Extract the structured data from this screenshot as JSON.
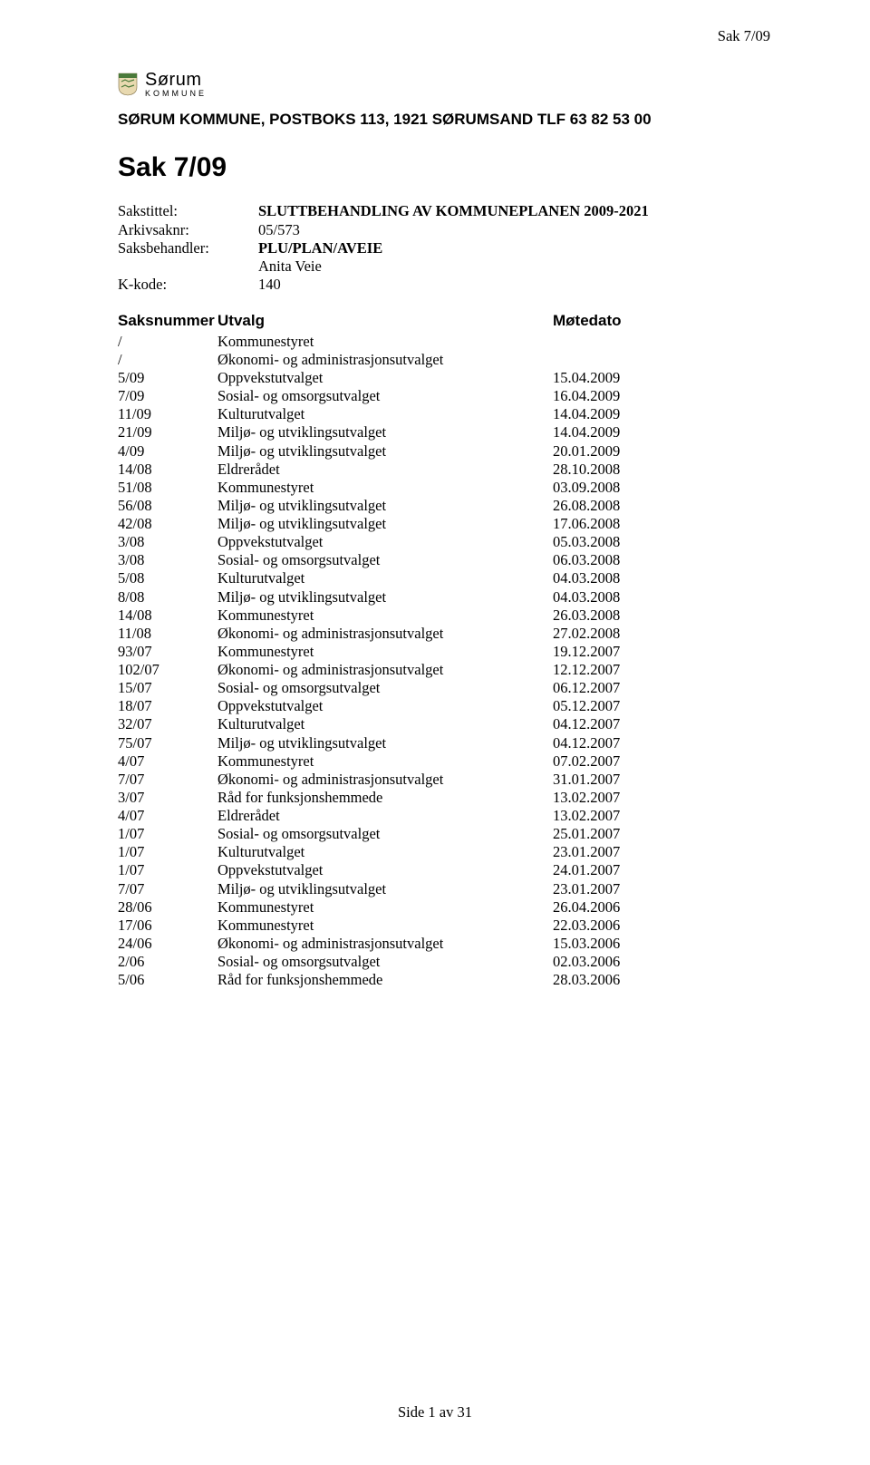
{
  "header": {
    "right": "Sak 7/09"
  },
  "logo": {
    "brand": "Sørum",
    "sub": "KOMMUNE",
    "shield_colors": {
      "bg": "#e8d9b0",
      "top": "#4a7a3a",
      "border": "#7a6a40"
    }
  },
  "org_line": "SØRUM KOMMUNE, POSTBOKS 113, 1921 SØRUMSAND  TLF 63 82 53 00",
  "case_title": "Sak 7/09",
  "meta": {
    "sakstittel_label": "Sakstittel:",
    "sakstittel_value": "SLUTTBEHANDLING AV KOMMUNEPLANEN 2009-2021",
    "arkivsaknr_label": "Arkivsaknr:",
    "arkivsaknr_value": "05/573",
    "saksbehandler_label": "Saksbehandler:",
    "saksbehandler_value": "PLU/PLAN/AVEIE",
    "saksbehandler_name": "Anita Veie",
    "kkode_label": "K-kode:",
    "kkode_value": "140"
  },
  "columns": {
    "a": "Saksnummer",
    "b": "Utvalg",
    "c": "Møtedato"
  },
  "rows": [
    {
      "a": "/",
      "b": "Kommunestyret",
      "c": ""
    },
    {
      "a": "/",
      "b": "Økonomi- og administrasjonsutvalget",
      "c": ""
    },
    {
      "a": "5/09",
      "b": "Oppvekstutvalget",
      "c": "15.04.2009"
    },
    {
      "a": "7/09",
      "b": "Sosial- og omsorgsutvalget",
      "c": "16.04.2009"
    },
    {
      "a": "11/09",
      "b": "Kulturutvalget",
      "c": "14.04.2009"
    },
    {
      "a": "21/09",
      "b": "Miljø- og utviklingsutvalget",
      "c": "14.04.2009"
    },
    {
      "a": "4/09",
      "b": "Miljø- og utviklingsutvalget",
      "c": "20.01.2009"
    },
    {
      "a": "14/08",
      "b": "Eldrerådet",
      "c": "28.10.2008"
    },
    {
      "a": "51/08",
      "b": "Kommunestyret",
      "c": "03.09.2008"
    },
    {
      "a": "56/08",
      "b": "Miljø- og utviklingsutvalget",
      "c": "26.08.2008"
    },
    {
      "a": "42/08",
      "b": "Miljø- og utviklingsutvalget",
      "c": "17.06.2008"
    },
    {
      "a": "3/08",
      "b": "Oppvekstutvalget",
      "c": "05.03.2008"
    },
    {
      "a": "3/08",
      "b": "Sosial- og omsorgsutvalget",
      "c": "06.03.2008"
    },
    {
      "a": "5/08",
      "b": "Kulturutvalget",
      "c": "04.03.2008"
    },
    {
      "a": "8/08",
      "b": "Miljø- og utviklingsutvalget",
      "c": "04.03.2008"
    },
    {
      "a": "14/08",
      "b": "Kommunestyret",
      "c": "26.03.2008"
    },
    {
      "a": "11/08",
      "b": "Økonomi- og administrasjonsutvalget",
      "c": "27.02.2008"
    },
    {
      "a": "93/07",
      "b": "Kommunestyret",
      "c": "19.12.2007"
    },
    {
      "a": "102/07",
      "b": "Økonomi- og administrasjonsutvalget",
      "c": "12.12.2007"
    },
    {
      "a": "15/07",
      "b": "Sosial- og omsorgsutvalget",
      "c": "06.12.2007"
    },
    {
      "a": "18/07",
      "b": "Oppvekstutvalget",
      "c": "05.12.2007"
    },
    {
      "a": "32/07",
      "b": "Kulturutvalget",
      "c": "04.12.2007"
    },
    {
      "a": "75/07",
      "b": "Miljø- og utviklingsutvalget",
      "c": "04.12.2007"
    },
    {
      "a": "4/07",
      "b": "Kommunestyret",
      "c": "07.02.2007"
    },
    {
      "a": "7/07",
      "b": "Økonomi- og administrasjonsutvalget",
      "c": "31.01.2007"
    },
    {
      "a": "3/07",
      "b": "Råd for funksjonshemmede",
      "c": "13.02.2007"
    },
    {
      "a": "4/07",
      "b": "Eldrerådet",
      "c": "13.02.2007"
    },
    {
      "a": "1/07",
      "b": "Sosial- og omsorgsutvalget",
      "c": "25.01.2007"
    },
    {
      "a": "1/07",
      "b": "Kulturutvalget",
      "c": "23.01.2007"
    },
    {
      "a": "1/07",
      "b": "Oppvekstutvalget",
      "c": "24.01.2007"
    },
    {
      "a": "7/07",
      "b": "Miljø- og utviklingsutvalget",
      "c": "23.01.2007"
    },
    {
      "a": "28/06",
      "b": "Kommunestyret",
      "c": "26.04.2006"
    },
    {
      "a": "17/06",
      "b": "Kommunestyret",
      "c": "22.03.2006"
    },
    {
      "a": "24/06",
      "b": "Økonomi- og administrasjonsutvalget",
      "c": "15.03.2006"
    },
    {
      "a": "2/06",
      "b": "Sosial- og omsorgsutvalget",
      "c": "02.03.2006"
    },
    {
      "a": "5/06",
      "b": "Råd for funksjonshemmede",
      "c": "28.03.2006"
    }
  ],
  "footer": "Side 1 av 31"
}
